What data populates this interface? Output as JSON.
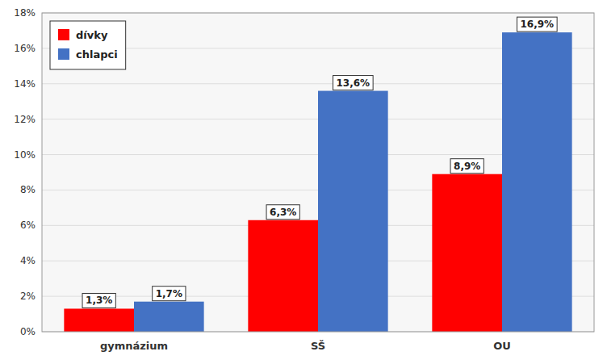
{
  "chart_data": {
    "type": "bar",
    "categories": [
      "gymnázium",
      "SŠ",
      "OU"
    ],
    "series": [
      {
        "name": "dívky",
        "color": "#FF0000",
        "values": [
          1.3,
          6.3,
          8.9
        ],
        "value_labels": [
          "1,3%",
          "6,3%",
          "8,9%"
        ]
      },
      {
        "name": "chlapci",
        "color": "#4472C4",
        "values": [
          1.7,
          13.6,
          16.9
        ],
        "value_labels": [
          "1,7%",
          "13,6%",
          "16,9%"
        ]
      }
    ],
    "ylim": [
      0,
      18
    ],
    "yticks": [
      {
        "value": 0,
        "label": "0%"
      },
      {
        "value": 2,
        "label": "2%"
      },
      {
        "value": 4,
        "label": "4%"
      },
      {
        "value": 6,
        "label": "6%"
      },
      {
        "value": 8,
        "label": "8%"
      },
      {
        "value": 10,
        "label": "10%"
      },
      {
        "value": 12,
        "label": "12%"
      },
      {
        "value": 14,
        "label": "14%"
      },
      {
        "value": 16,
        "label": "16%"
      },
      {
        "value": 18,
        "label": "18%"
      }
    ],
    "grid": true,
    "legend": "upper left",
    "data_labels": true
  }
}
